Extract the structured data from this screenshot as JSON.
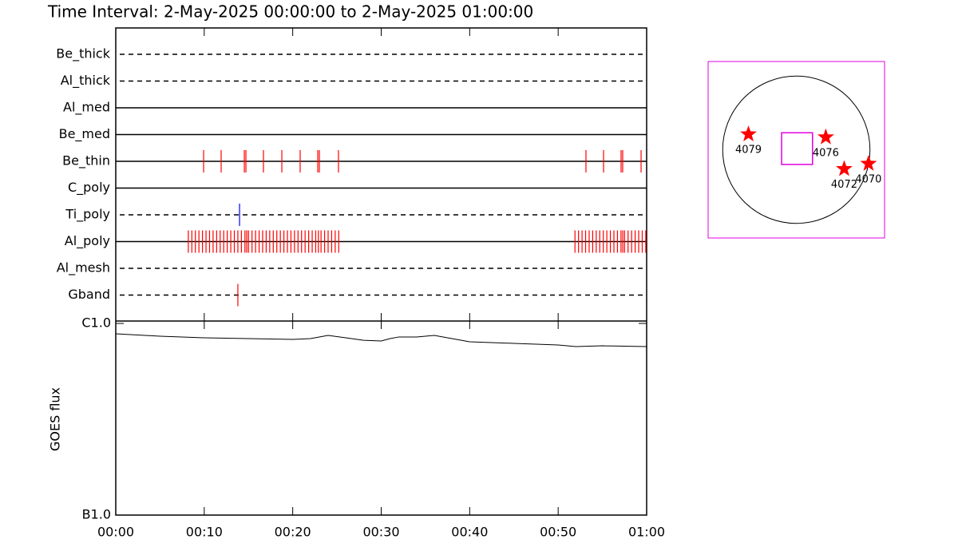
{
  "chart_data": [
    {
      "type": "timeline",
      "title": "Time Interval:  2-May-2025 00:00:00 to  2-May-2025 01:00:00",
      "series": [
        {
          "name": "Be_thick",
          "color": "#ff0000",
          "dashed": true,
          "values": []
        },
        {
          "name": "Al_thick",
          "color": "#ff0000",
          "dashed": true,
          "values": []
        },
        {
          "name": "Al_med",
          "color": "#ff0000",
          "dashed": false,
          "values": []
        },
        {
          "name": "Be_med",
          "color": "#ff0000",
          "dashed": false,
          "values": []
        },
        {
          "name": "Be_thin",
          "color": "#ff0000",
          "dashed": false,
          "values": [
            9.93,
            11.91,
            14.53,
            14.71,
            16.69,
            18.77,
            20.84,
            22.83,
            23.01,
            25.17,
            53.14,
            55.13,
            57.11,
            57.29,
            59.37
          ]
        },
        {
          "name": "C_poly",
          "color": "#ff0000",
          "dashed": false,
          "values": []
        },
        {
          "name": "Ti_poly",
          "color": "#0000ff",
          "dashed": true,
          "values": [
            13.99
          ]
        },
        {
          "name": "Al_poly",
          "color": "#ff0000",
          "dashed": false,
          "values": [
            8.2,
            8.6,
            9.0,
            9.4,
            9.8,
            10.2,
            10.6,
            11.0,
            11.4,
            11.8,
            12.2,
            12.6,
            13.0,
            13.4,
            13.8,
            14.2,
            14.6,
            14.8,
            15.0,
            15.4,
            15.8,
            16.2,
            16.6,
            17.0,
            17.4,
            17.8,
            18.2,
            18.6,
            19.0,
            19.4,
            19.8,
            20.2,
            20.6,
            21.0,
            21.4,
            21.8,
            22.2,
            22.6,
            22.9,
            23.2,
            23.6,
            24.0,
            24.4,
            24.8,
            25.2,
            51.9,
            52.3,
            52.7,
            53.1,
            53.5,
            53.9,
            54.3,
            54.7,
            55.1,
            55.5,
            55.9,
            56.3,
            56.7,
            57.1,
            57.3,
            57.5,
            57.9,
            58.3,
            58.7,
            59.1,
            59.5,
            59.9
          ]
        },
        {
          "name": "Al_mesh",
          "color": "#ff0000",
          "dashed": true,
          "values": []
        },
        {
          "name": "Gband",
          "color": "#ff0000",
          "dashed": true,
          "values": [
            13.8
          ]
        }
      ]
    },
    {
      "type": "line",
      "ylabel": "GOES flux",
      "log": true,
      "color": "#000000",
      "xlim": [
        0,
        60
      ],
      "xticks": [
        {
          "value": 0,
          "label": "00:00"
        },
        {
          "value": 10,
          "label": "00:10"
        },
        {
          "value": 20,
          "label": "00:20"
        },
        {
          "value": 30,
          "label": "00:30"
        },
        {
          "value": 40,
          "label": "00:40"
        },
        {
          "value": 50,
          "label": "00:50"
        },
        {
          "value": 60,
          "label": "01:00"
        }
      ],
      "ylim": [
        1e-07,
        1e-06
      ],
      "yticks": [
        {
          "value": 1e-07,
          "label": "B1.0"
        },
        {
          "value": 1e-06,
          "label": "C1.0"
        }
      ],
      "x": [
        0,
        5,
        10,
        15,
        20,
        22,
        24,
        26,
        28,
        30,
        31,
        32,
        34,
        36,
        38,
        40,
        45,
        50,
        52,
        55,
        60
      ],
      "values": [
        8.83e-07,
        8.58e-07,
        8.41e-07,
        8.33e-07,
        8.25e-07,
        8.33e-07,
        8.66e-07,
        8.41e-07,
        8.17e-07,
        8.1e-07,
        8.33e-07,
        8.5e-07,
        8.5e-07,
        8.66e-07,
        8.33e-07,
        8.02e-07,
        7.87e-07,
        7.72e-07,
        7.57e-07,
        7.64e-07,
        7.57e-07
      ]
    },
    {
      "type": "map",
      "xlim": [
        -1150,
        1150
      ],
      "ylim": [
        -1150,
        1150
      ],
      "sun_radius": 960,
      "frame_color": "#e000e0",
      "color": "#ff0000",
      "fov": {
        "x": [
          -192,
          211
        ],
        "y": [
          -192,
          221
        ]
      },
      "labels": [
        "4079",
        "4076",
        "4072",
        "4070"
      ],
      "x": [
        -624,
        384,
        624,
        941
      ],
      "y": [
        202,
        163,
        -250,
        -182
      ]
    }
  ]
}
